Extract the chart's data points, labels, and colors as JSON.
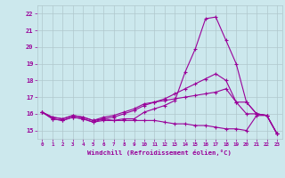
{
  "xlabel": "Windchill (Refroidissement éolien,°C)",
  "xlim": [
    -0.5,
    23.5
  ],
  "ylim": [
    14.5,
    22.5
  ],
  "yticks": [
    15,
    16,
    17,
    18,
    19,
    20,
    21,
    22
  ],
  "xticks": [
    0,
    1,
    2,
    3,
    4,
    5,
    6,
    7,
    8,
    9,
    10,
    11,
    12,
    13,
    14,
    15,
    16,
    17,
    18,
    19,
    20,
    21,
    22,
    23
  ],
  "background_color": "#cce8ed",
  "line_color": "#990099",
  "grid_color": "#b0c8cc",
  "lines": [
    [
      16.1,
      15.7,
      15.6,
      15.8,
      15.7,
      15.5,
      15.6,
      15.6,
      15.7,
      15.7,
      16.1,
      16.3,
      16.5,
      16.8,
      18.5,
      19.9,
      21.7,
      21.8,
      20.4,
      19.0,
      16.7,
      16.0,
      15.9,
      14.8
    ],
    [
      16.1,
      15.7,
      15.6,
      15.8,
      15.7,
      15.5,
      15.7,
      15.8,
      16.0,
      16.2,
      16.5,
      16.7,
      16.9,
      17.2,
      17.5,
      17.8,
      18.1,
      18.4,
      18.0,
      16.7,
      16.0,
      16.0,
      15.9,
      14.8
    ],
    [
      16.1,
      15.8,
      15.7,
      15.9,
      15.8,
      15.6,
      15.8,
      15.9,
      16.1,
      16.3,
      16.6,
      16.7,
      16.8,
      16.9,
      17.0,
      17.1,
      17.2,
      17.3,
      17.5,
      16.7,
      16.7,
      16.0,
      15.9,
      14.8
    ],
    [
      16.1,
      15.8,
      15.7,
      15.9,
      15.8,
      15.6,
      15.7,
      15.6,
      15.6,
      15.6,
      15.6,
      15.6,
      15.5,
      15.4,
      15.4,
      15.3,
      15.3,
      15.2,
      15.1,
      15.1,
      15.0,
      15.9,
      15.9,
      14.8
    ]
  ]
}
